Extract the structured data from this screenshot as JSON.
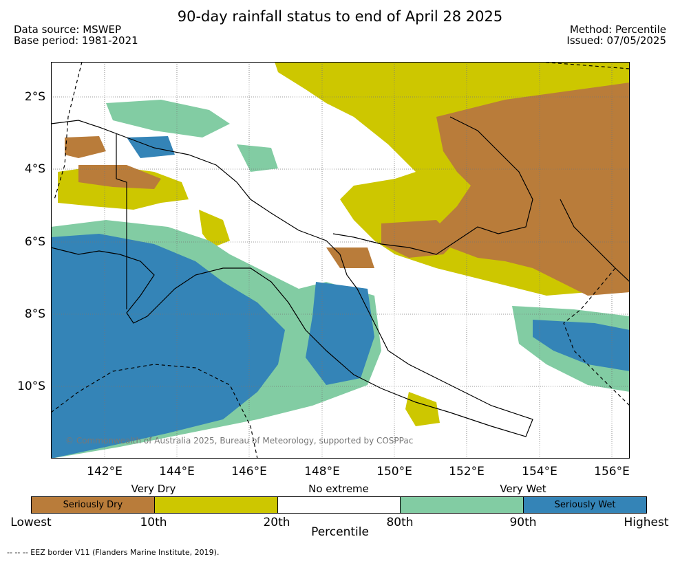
{
  "title": "90-day rainfall status to end of April 28 2025",
  "meta": {
    "data_source": "Data source: MSWEP",
    "base_period": "Base period: 1981-2021",
    "method": "Method: Percentile",
    "issued": "Issued: 07/05/2025"
  },
  "map": {
    "lat_labels": [
      "2°S",
      "4°S",
      "6°S",
      "8°S",
      "10°S"
    ],
    "lon_labels": [
      "142°E",
      "144°E",
      "146°E",
      "148°E",
      "150°E",
      "152°E",
      "154°E",
      "156°E"
    ],
    "copyright": "© Commonwealth of Australia 2025, Bureau of Meteorology, supported by COSPPac"
  },
  "legend": {
    "categories": [
      "Very Dry",
      "No extreme",
      "Very Wet"
    ],
    "segments": [
      {
        "label": "Seriously Dry",
        "color": "#b97c3a"
      },
      {
        "label": "",
        "color": "#cdc700"
      },
      {
        "label": "",
        "color": "#ffffff"
      },
      {
        "label": "",
        "color": "#82cca3"
      },
      {
        "label": "Seriously Wet",
        "color": "#3484b7"
      }
    ],
    "ticks": [
      "Lowest",
      "10th",
      "20th",
      "80th",
      "90th",
      "Highest"
    ],
    "axis_title": "Percentile"
  },
  "colors": {
    "seriously_dry": "#b97c3a",
    "very_dry": "#cdc700",
    "no_extreme": "#ffffff",
    "very_wet": "#82cca3",
    "seriously_wet": "#3484b7"
  },
  "footnote": "--  --  -- EEZ border V11 (Flanders Marine Institute, 2019)."
}
